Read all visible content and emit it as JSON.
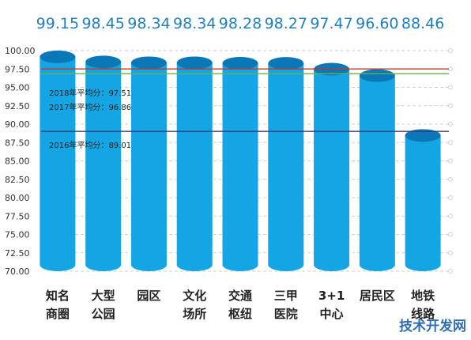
{
  "chart_data": {
    "type": "bar",
    "title": "",
    "xlabel": "",
    "ylabel": "",
    "categories": [
      [
        "知名",
        "商圈"
      ],
      [
        "大型",
        "公园"
      ],
      [
        "园区"
      ],
      [
        "文化",
        "场所"
      ],
      [
        "交通",
        "枢纽"
      ],
      [
        "三甲",
        "医院"
      ],
      [
        "3+1",
        "中心"
      ],
      [
        "居民区"
      ],
      [
        "地铁",
        "线路"
      ]
    ],
    "values": [
      99.15,
      98.45,
      98.34,
      98.34,
      98.28,
      98.27,
      97.47,
      96.6,
      88.46
    ],
    "value_labels": [
      "99.15",
      "98.45",
      "98.34",
      "98.34",
      "98.28",
      "98.27",
      "97.47",
      "96.60",
      "88.46"
    ],
    "ylim": [
      70,
      100
    ],
    "yticks": [
      "70.00",
      "72.50",
      "75.00",
      "77.50",
      "80.00",
      "82.50",
      "85.00",
      "87.50",
      "90.00",
      "92.50",
      "95.00",
      "97.50",
      "100.00"
    ],
    "grid": true,
    "colors": {
      "bar": "#14a6e4",
      "bar_top": "#0a78b8",
      "value_label": "#1f7fbf",
      "grid": "#cfcfcf",
      "axis_text": "#333333",
      "category_text": "#222222"
    },
    "reference_lines": [
      {
        "label": "2018年平均分：97.51",
        "value": 97.51,
        "color": "#c0392b"
      },
      {
        "label": "2017年平均分：96.86",
        "value": 96.86,
        "color": "#6ab04c"
      },
      {
        "label": "2016年平均分：89.01",
        "value": 89.01,
        "color": "#3b3b7a"
      }
    ]
  },
  "watermark": {
    "text": "技术开发网",
    "color": "#2f6fb0"
  }
}
